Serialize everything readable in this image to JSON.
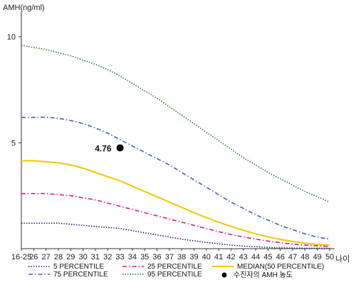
{
  "chart_data": {
    "type": "line",
    "ylabel": "AMH(ng/ml)",
    "xlabel": "나이",
    "ylim": [
      0,
      11
    ],
    "yticks": [
      5,
      10
    ],
    "categories": [
      "16-25",
      "26",
      "27",
      "28",
      "29",
      "30",
      "31",
      "32",
      "33",
      "34",
      "35",
      "36",
      "37",
      "38",
      "39",
      "40",
      "41",
      "42",
      "43",
      "44",
      "45",
      "46",
      "47",
      "48",
      "49",
      "50"
    ],
    "grid": false,
    "legend_position": "bottom",
    "series": [
      {
        "name": "5 PERCENTILE",
        "color": "#1a237e",
        "dash": "dotted",
        "values": [
          1.2,
          1.2,
          1.2,
          1.2,
          1.15,
          1.1,
          1.05,
          1.0,
          0.95,
          0.85,
          0.75,
          0.65,
          0.55,
          0.45,
          0.37,
          0.3,
          0.23,
          0.17,
          0.12,
          0.09,
          0.06,
          0.04,
          0.03,
          0.02,
          0.02,
          0.02
        ]
      },
      {
        "name": "25 PERCENTILE",
        "color": "#e0197d",
        "dash": "dashdot",
        "values": [
          2.6,
          2.6,
          2.6,
          2.55,
          2.5,
          2.4,
          2.3,
          2.15,
          2.0,
          1.85,
          1.7,
          1.55,
          1.4,
          1.25,
          1.1,
          0.95,
          0.8,
          0.67,
          0.55,
          0.45,
          0.36,
          0.28,
          0.22,
          0.17,
          0.13,
          0.1
        ]
      },
      {
        "name": "MEDIAN(50 PERCENTILE)",
        "color": "#f2c800",
        "dash": "solid",
        "values": [
          4.15,
          4.15,
          4.1,
          4.05,
          3.95,
          3.8,
          3.6,
          3.4,
          3.2,
          2.95,
          2.7,
          2.45,
          2.2,
          1.95,
          1.7,
          1.47,
          1.25,
          1.05,
          0.87,
          0.7,
          0.56,
          0.44,
          0.34,
          0.26,
          0.2,
          0.16
        ]
      },
      {
        "name": "75 PERCENTILE",
        "color": "#3f5fbf",
        "dash": "dashdot",
        "values": [
          6.2,
          6.2,
          6.2,
          6.15,
          6.05,
          5.9,
          5.7,
          5.45,
          5.15,
          4.85,
          4.55,
          4.25,
          3.95,
          3.6,
          3.25,
          2.9,
          2.55,
          2.2,
          1.9,
          1.6,
          1.35,
          1.1,
          0.9,
          0.7,
          0.55,
          0.45
        ]
      },
      {
        "name": "95 PERCENTILE",
        "color": "#2e7d32",
        "dash": "dotted",
        "values": [
          9.6,
          9.5,
          9.4,
          9.25,
          9.1,
          8.9,
          8.7,
          8.45,
          8.15,
          7.8,
          7.45,
          7.1,
          6.7,
          6.3,
          5.9,
          5.5,
          5.1,
          4.7,
          4.3,
          3.95,
          3.6,
          3.3,
          3.0,
          2.7,
          2.45,
          2.2
        ]
      }
    ],
    "point": {
      "name": "수진자의 AMH 농도",
      "x": "33",
      "y": 4.76,
      "label": "4.76",
      "color": "#000000"
    }
  }
}
